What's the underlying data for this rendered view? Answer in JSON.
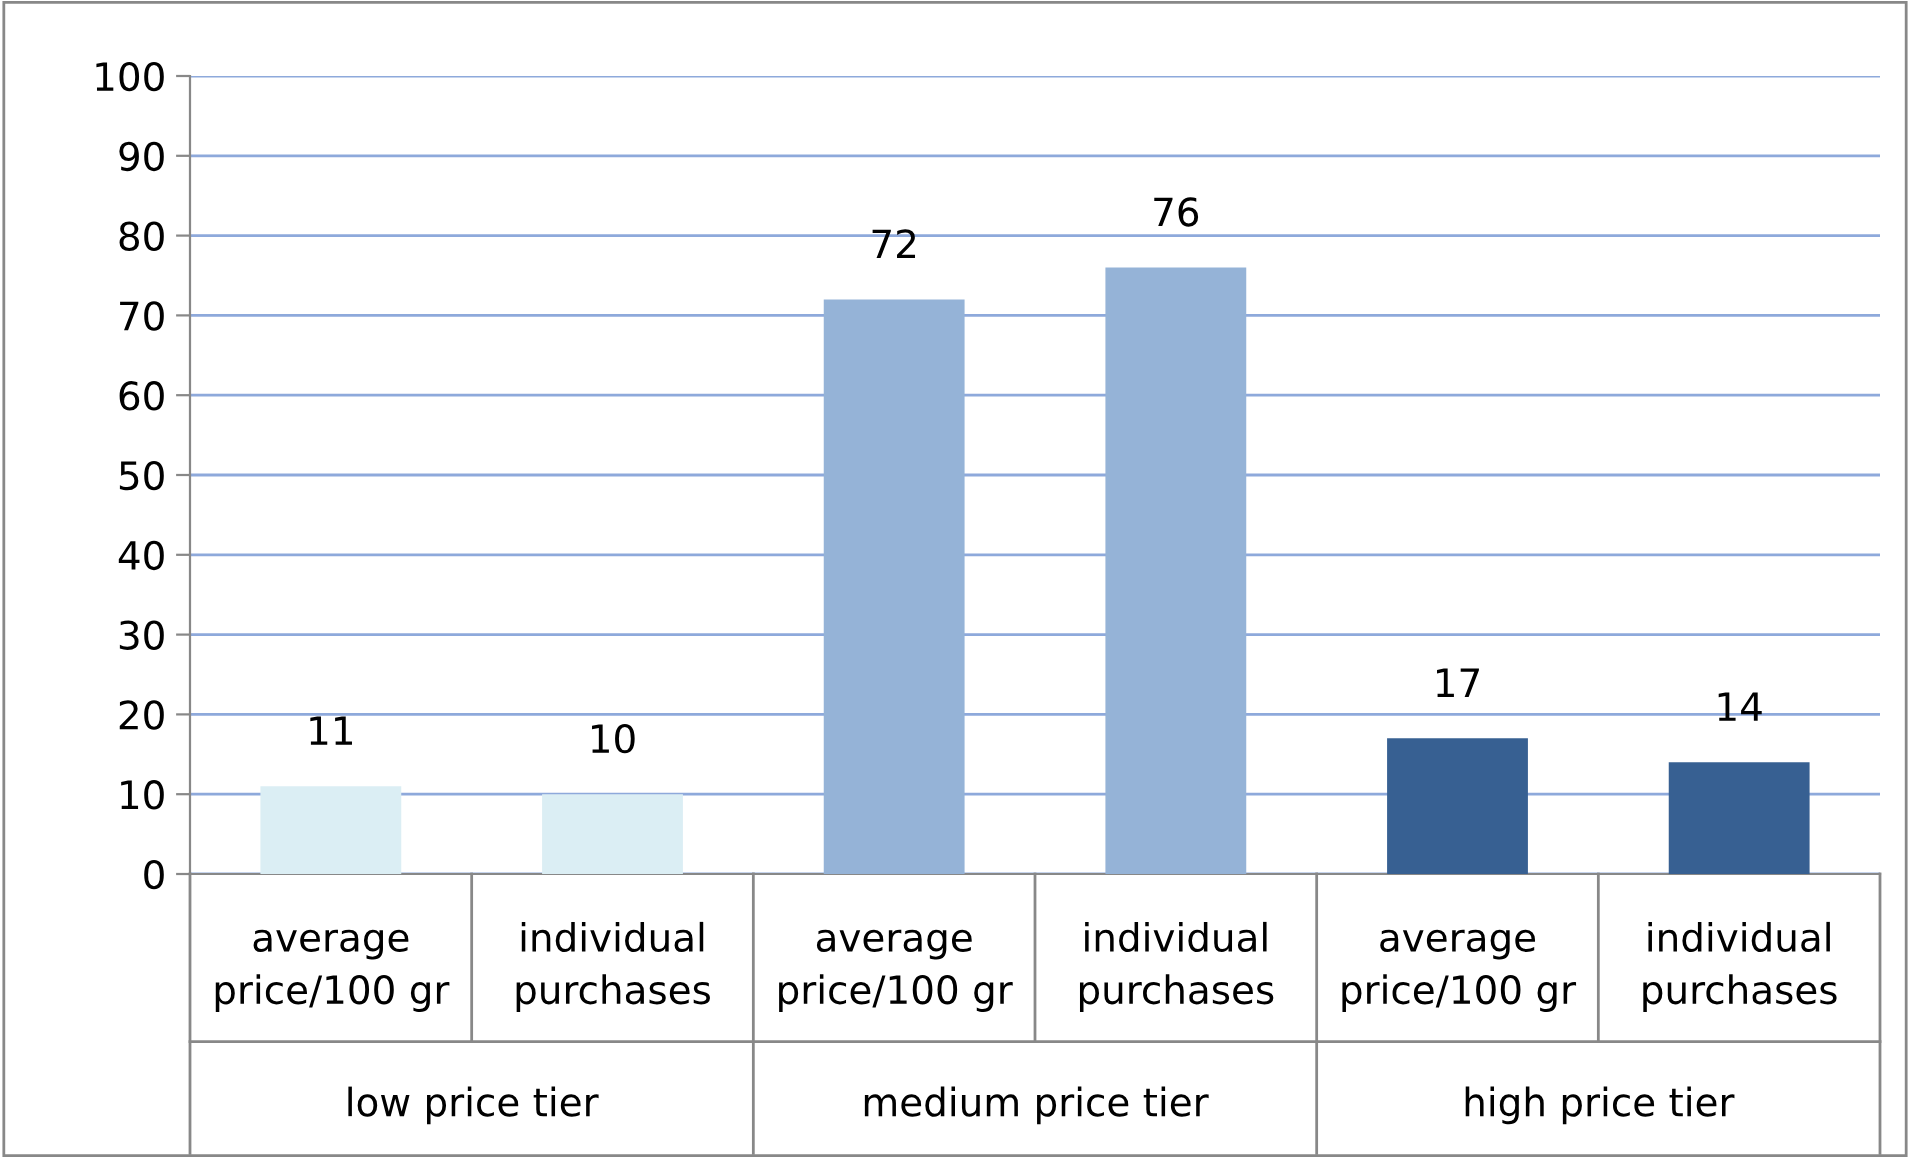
{
  "chart_data": {
    "type": "bar",
    "categories": [
      "average\nprice/100 gr",
      "individual\npurchases",
      "average\nprice/100 gr",
      "individual\npurchases",
      "average\nprice/100 gr",
      "individual\npurchases"
    ],
    "values": [
      11,
      10,
      72,
      76,
      17,
      14
    ],
    "colors": [
      "#dbeef4",
      "#dbeef4",
      "#95b3d7",
      "#95b3d7",
      "#376092",
      "#376092"
    ],
    "annotations": [
      "low price tier",
      "medium price tier",
      "high price tier"
    ],
    "ylim": [
      0,
      100
    ],
    "yticks": [
      0,
      10,
      20,
      30,
      40,
      50,
      60,
      70,
      80,
      90,
      100
    ],
    "grid": "y",
    "data_labels": true
  }
}
